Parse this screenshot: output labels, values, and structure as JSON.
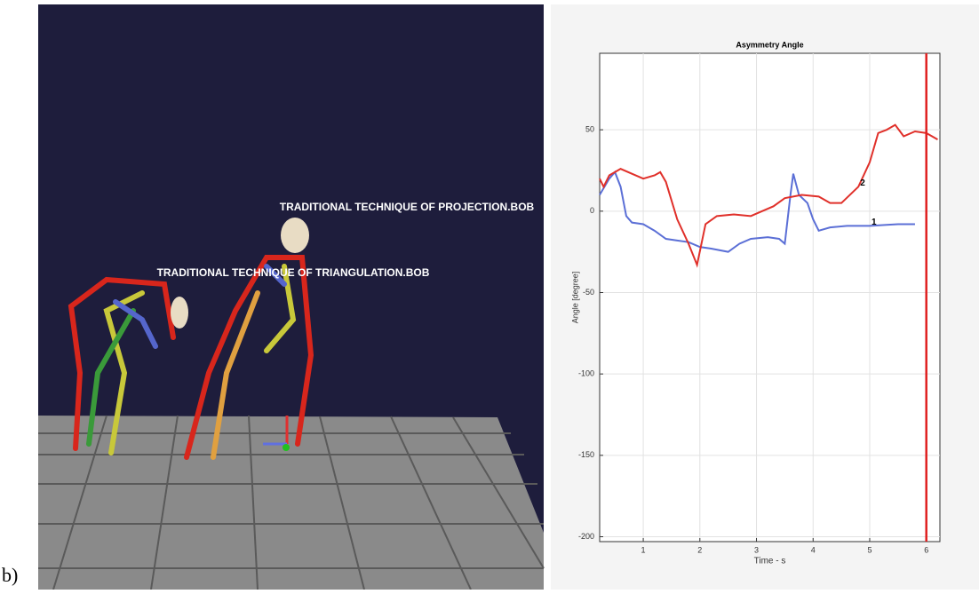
{
  "figure_label": "b)",
  "scene": {
    "labels": [
      "TRADITIONAL TECHNIQUE OF PROJECTION.BOB",
      "TRADITIONAL TECHNIQUE OF TRIANGULATION.BOB"
    ]
  },
  "chart_data": {
    "type": "line",
    "title": "Asymmetry Angle",
    "x_label": "Time - s",
    "y_label": "Angle [degree]",
    "xlim": [
      0.23,
      6.24
    ],
    "ylim": [
      -203,
      97
    ],
    "xticks": [
      1,
      2,
      3,
      4,
      5,
      6
    ],
    "yticks": [
      50,
      0,
      -50,
      -100,
      -150,
      -200
    ],
    "grid": true,
    "vline": {
      "x": 6,
      "color": "#e02020"
    },
    "series": [
      {
        "name": "1",
        "color": "#5b6fd6",
        "x": [
          0.23,
          0.4,
          0.5,
          0.6,
          0.7,
          0.8,
          1.0,
          1.2,
          1.4,
          1.6,
          1.8,
          2.0,
          2.2,
          2.5,
          2.7,
          2.9,
          3.2,
          3.4,
          3.5,
          3.6,
          3.65,
          3.75,
          3.9,
          4.0,
          4.1,
          4.3,
          4.6,
          5.0,
          5.5,
          5.8
        ],
        "values": [
          10,
          20,
          24,
          15,
          -3,
          -7,
          -8,
          -12,
          -17,
          -18,
          -19,
          -22,
          -23,
          -25,
          -20,
          -17,
          -16,
          -17,
          -20,
          10,
          23,
          10,
          5,
          -5,
          -12,
          -10,
          -9,
          -9,
          -8,
          -8
        ]
      },
      {
        "name": "2",
        "color": "#e0302a",
        "x": [
          0.23,
          0.3,
          0.4,
          0.6,
          0.8,
          1.0,
          1.2,
          1.3,
          1.4,
          1.6,
          1.8,
          1.95,
          2.1,
          2.3,
          2.6,
          2.9,
          3.1,
          3.3,
          3.5,
          3.8,
          4.1,
          4.3,
          4.5,
          4.8,
          5.0,
          5.15,
          5.3,
          5.45,
          5.6,
          5.8,
          6.0,
          6.2
        ],
        "values": [
          20,
          15,
          22,
          26,
          23,
          20,
          22,
          24,
          18,
          -5,
          -20,
          -33,
          -8,
          -3,
          -2,
          -3,
          0,
          3,
          8,
          10,
          9,
          5,
          5,
          15,
          30,
          48,
          50,
          53,
          46,
          49,
          48,
          44
        ]
      }
    ]
  }
}
